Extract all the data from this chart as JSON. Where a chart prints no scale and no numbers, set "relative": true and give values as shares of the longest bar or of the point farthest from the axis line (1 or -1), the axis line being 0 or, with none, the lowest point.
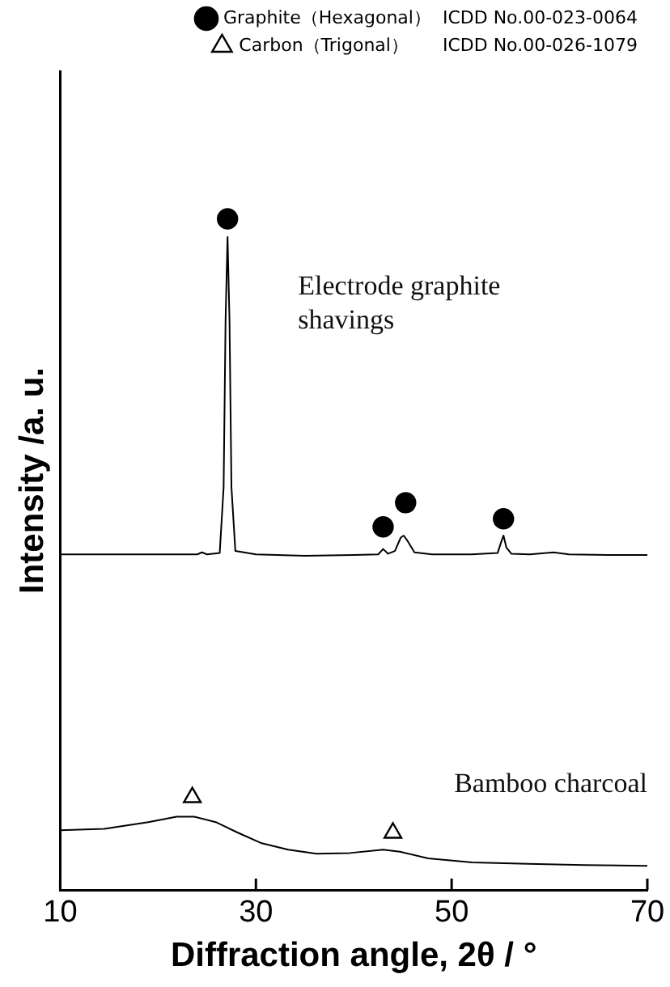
{
  "chart_data": {
    "type": "line",
    "relative": true,
    "xlabel": "Diffraction angle, 2θ / °",
    "ylabel": "Intensity /a. u.",
    "xlim": [
      10,
      70
    ],
    "xticks": [
      10,
      30,
      50,
      70
    ],
    "legend": "top right",
    "grid": false,
    "series": [
      {
        "name": "Electrode graphite shavings",
        "color": "#000000",
        "marker": "none",
        "x": [
          10,
          20,
          24,
          24.5,
          25,
          26.3,
          26.7,
          26.9,
          27.1,
          27.3,
          27.5,
          27.9,
          30,
          35,
          40,
          42.5,
          43,
          43.5,
          44.2,
          44.8,
          45.1,
          45.5,
          46.2,
          48,
          52,
          54.7,
          55.1,
          55.3,
          55.6,
          56.1,
          58,
          60.4,
          62,
          66,
          70
        ],
        "values": [
          0.5,
          0.5,
          0.5,
          0.503,
          0.5,
          0.502,
          0.6,
          0.85,
          0.973,
          0.85,
          0.6,
          0.505,
          0.5,
          0.498,
          0.499,
          0.5,
          0.508,
          0.501,
          0.505,
          0.525,
          0.528,
          0.52,
          0.503,
          0.5,
          0.5,
          0.502,
          0.52,
          0.528,
          0.51,
          0.501,
          0.5,
          0.503,
          0.5,
          0.499,
          0.499
        ]
      },
      {
        "name": "Bamboo charcoal",
        "color": "#000000",
        "marker": "none",
        "x": [
          10,
          14.5,
          19,
          21.9,
          23.7,
          25.9,
          28.2,
          30.5,
          33.3,
          36.2,
          39.6,
          43,
          44.7,
          47.6,
          52.1,
          57.8,
          63.5,
          70
        ],
        "values": [
          0.089,
          0.091,
          0.101,
          0.109,
          0.109,
          0.101,
          0.085,
          0.07,
          0.06,
          0.054,
          0.055,
          0.06,
          0.057,
          0.047,
          0.041,
          0.039,
          0.037,
          0.036
        ]
      },
      {
        "type": "scatter",
        "name": "Graphite（Hexagonal）  ICDD No.00-023-0064",
        "color": "#000000",
        "marker": "circle",
        "x": [
          27.1,
          43,
          45.3,
          55.3
        ],
        "values": [
          1,
          0.541,
          0.577,
          0.553
        ]
      },
      {
        "type": "scatter",
        "name": "Carbon（Trigonal）      ICDD No.00-026-1079",
        "color": "#000000",
        "marker": "triangle",
        "x": [
          23.5,
          44
        ],
        "values": [
          0.138,
          0.085
        ]
      }
    ]
  }
}
